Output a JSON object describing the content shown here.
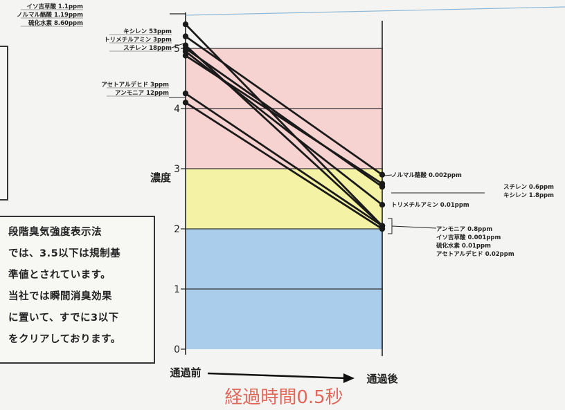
{
  "chart_data": {
    "type": "line",
    "categories": [
      "通過前",
      "通過後"
    ],
    "ylabel": "濃度",
    "ylim": [
      0,
      5.5
    ],
    "yticks": [
      0,
      1,
      2,
      3,
      4,
      5
    ],
    "bands": [
      {
        "from": 0,
        "to": 2,
        "color": "#a9cdea"
      },
      {
        "from": 2,
        "to": 3,
        "color": "#f4f2a4"
      },
      {
        "from": 3,
        "to": 5,
        "color": "#f6d3d1"
      }
    ],
    "series": [
      {
        "name": "イソ吉草酸",
        "values": [
          5.4,
          2.05
        ],
        "start_label": "イソ吉草酸 1.1ppm",
        "end_label": "イソ吉草酸 0.001ppm"
      },
      {
        "name": "ノルマル酪酸",
        "values": [
          5.2,
          2.9
        ],
        "start_label": "ノルマル酪酸 1.19ppm",
        "end_label": "ノルマル酪酸 0.002ppm"
      },
      {
        "name": "硫化水素",
        "values": [
          5.05,
          2.05
        ],
        "start_label": "硫化水素 8.60ppm",
        "end_label": "硫化水素 0.01ppm"
      },
      {
        "name": "キシレン",
        "values": [
          5.0,
          2.7
        ],
        "start_label": "キシレン 53ppm",
        "end_label": "キシレン 1.8ppm"
      },
      {
        "name": "トリメチルアミン",
        "values": [
          4.95,
          2.4
        ],
        "start_label": "トリメチルアミン 3ppm",
        "end_label": "トリメチルアミン 0.01ppm"
      },
      {
        "name": "スチレン",
        "values": [
          4.88,
          2.75
        ],
        "start_label": "スチレン 18ppm",
        "end_label": "スチレン 0.6ppm"
      },
      {
        "name": "アセトアルデヒド",
        "values": [
          4.25,
          2.05
        ],
        "start_label": "アセトアルデヒド 3ppm",
        "end_label": "アセトアルデヒド 0.02ppm"
      },
      {
        "name": "アンモニア",
        "values": [
          4.1,
          2.0
        ],
        "start_label": "アンモニア 12ppm",
        "end_label": "アンモニア 0.8ppm"
      }
    ],
    "left_label_groups": [
      [
        "イソ吉草酸 1.1ppm",
        "ノルマル酪酸 1.19ppm",
        "硫化水素 8.60ppm"
      ],
      [
        "キシレン 53ppm",
        "トリメチルアミン 3ppm",
        "スチレン 18ppm"
      ],
      [
        "アセトアルデヒド 3ppm",
        "アンモニア 12ppm"
      ]
    ],
    "right_label_groups": [
      [
        "ノルマル酪酸 0.002ppm"
      ],
      [
        "スチレン 0.6ppm",
        "キシレン 1.8ppm"
      ],
      [
        "トリメチルアミン 0.01ppm"
      ],
      [
        "アンモニア 0.8ppm",
        "イソ吉草酸 0.001ppm",
        "硫化水素 0.01ppm",
        "アセトアルデヒド 0.02ppm"
      ]
    ],
    "xlabel": "経過時間0.5秒"
  },
  "note": {
    "lines": [
      "段階臭気強度表示法",
      "では、3.5以下は規制基",
      "準値とされています。",
      "当社では瞬間消臭効果",
      "に置いて、すでに3以下",
      "をクリアしております。"
    ]
  }
}
